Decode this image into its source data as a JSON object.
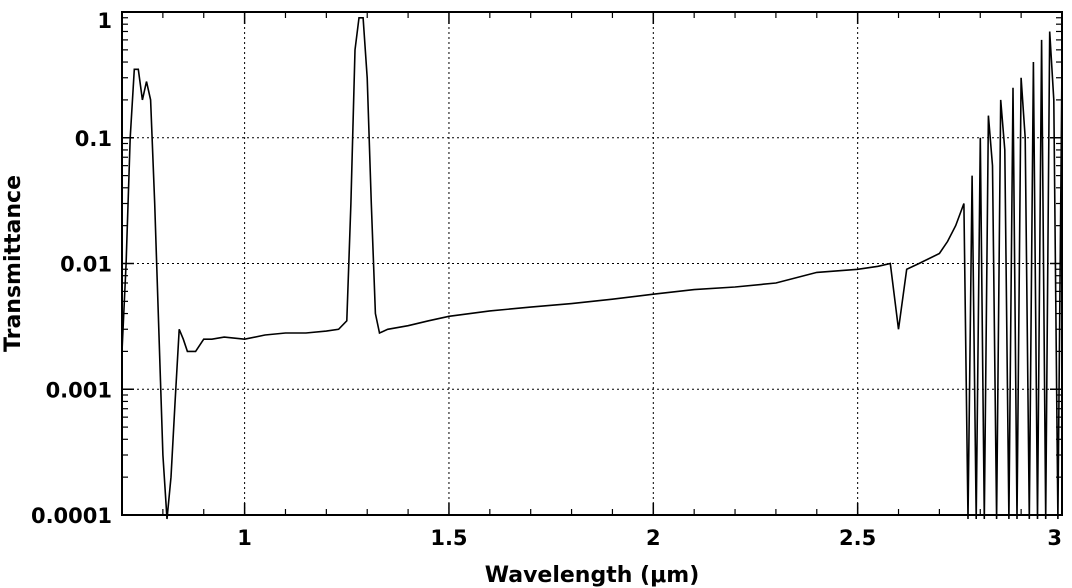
{
  "chart_data": {
    "type": "line",
    "title": "",
    "xlabel": "Wavelength (μm)",
    "ylabel": "Transmittance",
    "xlim": [
      0.7,
      3.0
    ],
    "ylim": [
      0.0001,
      1
    ],
    "yscale": "log",
    "grid": true,
    "grid_style": "dotted",
    "line_color": "#000000",
    "x_ticks": [
      {
        "value": 1,
        "label": "1"
      },
      {
        "value": 1.5,
        "label": "1.5"
      },
      {
        "value": 2,
        "label": "2"
      },
      {
        "value": 2.5,
        "label": "2.5"
      },
      {
        "value": 3,
        "label": "3"
      }
    ],
    "y_ticks": [
      {
        "value": 0.0001,
        "label": "0.0001"
      },
      {
        "value": 0.001,
        "label": "0.001"
      },
      {
        "value": 0.01,
        "label": "0.01"
      },
      {
        "value": 0.1,
        "label": "0.1"
      },
      {
        "value": 1,
        "label": "1"
      }
    ],
    "series": [
      {
        "x": [
          0.7,
          0.71,
          0.72,
          0.73,
          0.74,
          0.75,
          0.76,
          0.77,
          0.78,
          0.79,
          0.8,
          0.81,
          0.82,
          0.83,
          0.84,
          0.85,
          0.86,
          0.87,
          0.88,
          0.9,
          0.92,
          0.95,
          1.0,
          1.05,
          1.1,
          1.15,
          1.2,
          1.23,
          1.25,
          1.26,
          1.27,
          1.28,
          1.29,
          1.3,
          1.31,
          1.32,
          1.33,
          1.35,
          1.4,
          1.45,
          1.5,
          1.6,
          1.7,
          1.8,
          1.9,
          2.0,
          2.1,
          2.2,
          2.3,
          2.4,
          2.5,
          2.55,
          2.58,
          2.6,
          2.62,
          2.65,
          2.7,
          2.72,
          2.74,
          2.76,
          2.77,
          2.78,
          2.79,
          2.8,
          2.81,
          2.82,
          2.83,
          2.84,
          2.85,
          2.86,
          2.87,
          2.88,
          2.89,
          2.9,
          2.91,
          2.92,
          2.93,
          2.94,
          2.95,
          2.96,
          2.97,
          2.98,
          2.99,
          3.0
        ],
        "y": [
          0.002,
          0.01,
          0.1,
          0.35,
          0.35,
          0.2,
          0.28,
          0.2,
          0.03,
          0.003,
          0.0003,
          8e-05,
          0.0002,
          0.0008,
          0.003,
          0.0025,
          0.002,
          0.002,
          0.002,
          0.0025,
          0.0025,
          0.0026,
          0.0025,
          0.0027,
          0.0028,
          0.0028,
          0.0029,
          0.003,
          0.0035,
          0.03,
          0.5,
          0.9,
          0.9,
          0.3,
          0.03,
          0.004,
          0.0028,
          0.003,
          0.0032,
          0.0035,
          0.0038,
          0.0042,
          0.0045,
          0.0048,
          0.0052,
          0.0057,
          0.0062,
          0.0065,
          0.007,
          0.0085,
          0.009,
          0.0095,
          0.01,
          0.003,
          0.009,
          0.01,
          0.012,
          0.015,
          0.02,
          0.03,
          8e-05,
          0.05,
          8e-05,
          0.1,
          8e-05,
          0.15,
          0.06,
          8e-05,
          0.2,
          0.08,
          8e-05,
          0.25,
          8e-05,
          0.3,
          0.1,
          8e-05,
          0.4,
          8e-05,
          0.6,
          8e-05,
          0.7,
          0.2,
          8e-05,
          0.4
        ]
      }
    ]
  }
}
